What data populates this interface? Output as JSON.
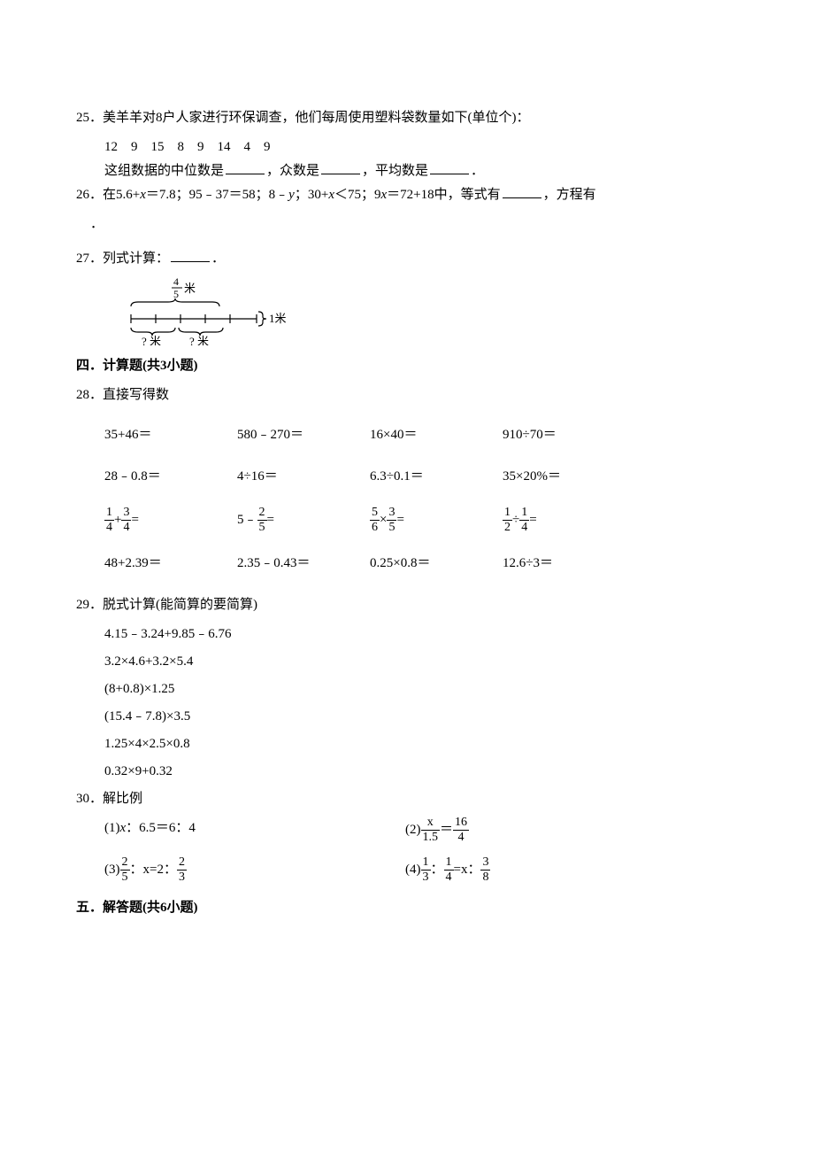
{
  "q25": {
    "number": "25．",
    "text_part1": "美羊羊对8户人家进行环保调查，他们每周使用塑料袋数量如下(单位个)：",
    "data_values": "12　9　15　8　9　14　4　9",
    "text_part2_a": "这组数据的中位数是",
    "text_part2_b": "，众数是",
    "text_part2_c": "，平均数是",
    "text_part2_d": "．"
  },
  "q26": {
    "number": "26．",
    "text_a": "在5.6+",
    "text_b": "＝7.8；95﹣37＝58；8﹣",
    "text_c": "；30+",
    "text_d": "＜75；9",
    "text_e": "＝72+18中，等式有",
    "text_f": "，方程有",
    "var_x": "x",
    "var_y": "y",
    "period": "．"
  },
  "q27": {
    "number": "27．",
    "text": "列式计算：",
    "period": "．",
    "diagram": {
      "top_label": "米",
      "top_frac_num": "4",
      "top_frac_den": "5",
      "right_label": "1米",
      "bottom_left": "? 米",
      "bottom_right": "? 米"
    }
  },
  "section4": {
    "title": "四．计算题(共3小题)"
  },
  "q28": {
    "number": "28．",
    "text": "直接写得数",
    "rows": [
      [
        "35+46＝",
        "580﹣270＝",
        "16×40＝",
        "910÷70＝"
      ],
      [
        "28﹣0.8＝",
        "4÷16＝",
        "6.3÷0.1＝",
        "35×20%＝"
      ],
      [
        "FRAC:1:4|+|FRAC:3:4|=",
        "5﹣|FRAC:2:5|=",
        "FRAC:5:6|×|FRAC:3:5|=",
        "FRAC:1:2|÷|FRAC:1:4|="
      ],
      [
        "48+2.39＝",
        "2.35﹣0.43＝",
        "0.25×0.8＝",
        "12.6÷3＝"
      ]
    ]
  },
  "q29": {
    "number": "29．",
    "text": "脱式计算(能简算的要简算)",
    "items": [
      "4.15﹣3.24+9.85﹣6.76",
      "3.2×4.6+3.2×5.4",
      "(8+0.8)×1.25",
      "(15.4﹣7.8)×3.5",
      "1.25×4×2.5×0.8",
      "0.32×9+0.32"
    ]
  },
  "q30": {
    "number": "30．",
    "text": "解比例",
    "item1_label": "(1)",
    "item1_a": "：6.5＝6：4",
    "item2_label": "(2)",
    "item2_frac1_num": "x",
    "item2_frac1_den": "1.5",
    "item2_eq": "＝",
    "item2_frac2_num": "16",
    "item2_frac2_den": "4",
    "item3_label": "(3)",
    "item3_frac_num": "2",
    "item3_frac_den": "5",
    "item3_mid": "：x=2：",
    "item3_frac2_num": "2",
    "item3_frac2_den": "3",
    "item4_label": "(4)",
    "item4_frac1_num": "1",
    "item4_frac1_den": "3",
    "item4_colon1": "：",
    "item4_frac2_num": "1",
    "item4_frac2_den": "4",
    "item4_mid": "=x：",
    "item4_frac3_num": "3",
    "item4_frac3_den": "8",
    "var_x": "x"
  },
  "section5": {
    "title": "五．解答题(共6小题)"
  }
}
